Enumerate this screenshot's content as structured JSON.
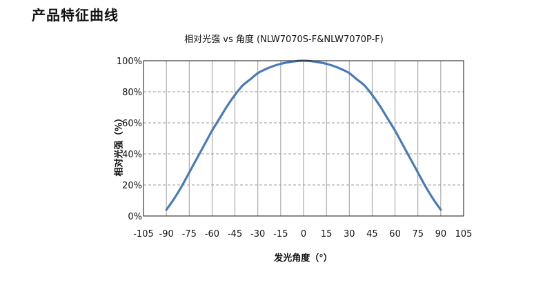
{
  "page": {
    "heading": "产品特征曲线"
  },
  "chart_data": {
    "type": "line",
    "title": "相对光强 vs 角度 (NLW7070S-F&NLW7070P-F)",
    "xlabel": "发光角度（°）",
    "ylabel": "相对光强（%）",
    "xlim": [
      -105,
      105
    ],
    "ylim": [
      0,
      100
    ],
    "x_ticks": [
      -105,
      -90,
      -75,
      -60,
      -45,
      -30,
      -15,
      0,
      15,
      30,
      45,
      60,
      75,
      90,
      105
    ],
    "y_ticks": [
      0,
      20,
      40,
      60,
      80,
      100
    ],
    "y_tick_labels": [
      "0%",
      "20%",
      "40%",
      "60%",
      "80%",
      "100%"
    ],
    "grid": true,
    "line_color": "#4a7ab8",
    "series": [
      {
        "x": [
          -90,
          -85,
          -80,
          -75,
          -70,
          -65,
          -60,
          -55,
          -50,
          -45,
          -40,
          -35,
          -30,
          -25,
          -20,
          -15,
          -10,
          -5,
          0,
          5,
          10,
          15,
          20,
          25,
          30,
          35,
          40,
          45,
          50,
          55,
          60,
          65,
          70,
          75,
          80,
          85,
          90
        ],
        "values": [
          4,
          11,
          19,
          28,
          37,
          46,
          55,
          63,
          71,
          78,
          84,
          88,
          92,
          94.5,
          96.5,
          98,
          99,
          99.7,
          100,
          99.7,
          99,
          98,
          96.5,
          94.5,
          92,
          88,
          84,
          78,
          71,
          63,
          55,
          46,
          37,
          28,
          19,
          11,
          4
        ]
      }
    ]
  }
}
